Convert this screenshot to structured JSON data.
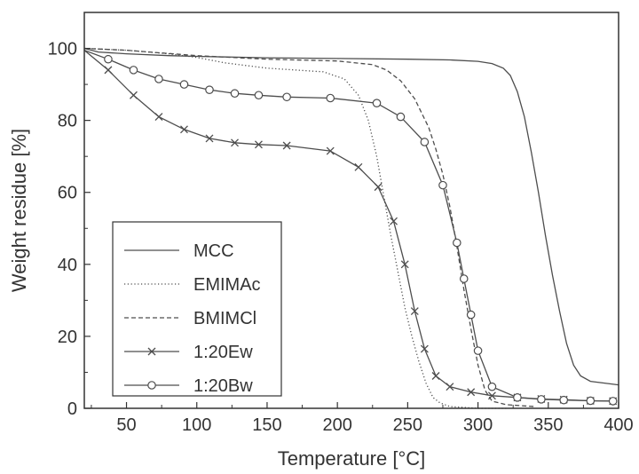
{
  "chart_data": {
    "type": "line",
    "title": "",
    "xlabel": "Temperature [°C]",
    "ylabel": "Weight residue [%]",
    "xlim": [
      20,
      400
    ],
    "ylim": [
      0,
      110
    ],
    "xticks": [
      50,
      100,
      150,
      200,
      250,
      300,
      350,
      400
    ],
    "yticks": [
      0,
      20,
      40,
      60,
      80,
      100
    ],
    "grid": false,
    "legend_position": "bottom-left",
    "series": [
      {
        "name": "MCC",
        "dash": "solid",
        "marker": "none",
        "x": [
          20,
          30,
          50,
          80,
          100,
          150,
          200,
          250,
          280,
          300,
          310,
          318,
          323,
          328,
          333,
          338,
          343,
          348,
          353,
          358,
          363,
          368,
          373,
          380,
          390,
          400
        ],
        "y": [
          100,
          99,
          98.5,
          98,
          97.8,
          97.4,
          97.2,
          97,
          96.8,
          96.4,
          95.8,
          94.5,
          92.5,
          88,
          81,
          71,
          60,
          48,
          37,
          27,
          18,
          12,
          9,
          7.5,
          7,
          6.5
        ]
      },
      {
        "name": "EMIMAc",
        "dash": "dotted",
        "marker": "none",
        "x": [
          20,
          50,
          80,
          100,
          120,
          150,
          190,
          205,
          215,
          222,
          228,
          233,
          238,
          243,
          248,
          253,
          258,
          263,
          268,
          273,
          280,
          300,
          320
        ],
        "y": [
          100,
          99.5,
          98.5,
          97.5,
          96,
          94.5,
          93.5,
          91.5,
          87,
          80,
          70,
          59,
          48,
          38,
          28,
          20,
          13,
          7,
          3,
          1.5,
          0.5,
          0,
          0
        ]
      },
      {
        "name": "BMIMCl",
        "dash": "dashed",
        "marker": "none",
        "x": [
          20,
          50,
          100,
          150,
          200,
          225,
          235,
          245,
          255,
          265,
          270,
          275,
          280,
          285,
          290,
          295,
          300,
          305,
          310,
          320,
          340
        ],
        "y": [
          100,
          99.5,
          98,
          97,
          96.5,
          95.5,
          94,
          91,
          86,
          78,
          72,
          65,
          56,
          45,
          33,
          22,
          12,
          5,
          2,
          1,
          0.5
        ]
      },
      {
        "name": "1:20Ew",
        "dash": "solid",
        "marker": "x",
        "x": [
          20,
          37,
          55,
          73,
          91,
          109,
          127,
          144,
          164,
          195,
          215,
          229,
          240,
          248,
          255,
          262,
          270,
          280,
          295,
          310,
          328,
          345,
          361,
          380,
          396
        ],
        "y": [
          99.5,
          94,
          87,
          81,
          77.5,
          75,
          73.8,
          73.3,
          73,
          71.5,
          67,
          61.5,
          52,
          40,
          27,
          16.5,
          9,
          6,
          4.5,
          3.5,
          3,
          2.6,
          2.4,
          2.1,
          2
        ]
      },
      {
        "name": "1:20Bw",
        "dash": "solid",
        "marker": "circle",
        "x": [
          20,
          37,
          55,
          73,
          91,
          109,
          127,
          144,
          164,
          195,
          228,
          245,
          262,
          275,
          285,
          290,
          295,
          300,
          310,
          328,
          345,
          361,
          380,
          396
        ],
        "y": [
          99.5,
          97,
          94,
          91.5,
          90,
          88.5,
          87.5,
          87,
          86.5,
          86.2,
          84.8,
          81,
          74,
          62,
          46,
          36,
          26,
          16,
          6,
          3,
          2.5,
          2.3,
          2.1,
          2
        ]
      }
    ]
  }
}
